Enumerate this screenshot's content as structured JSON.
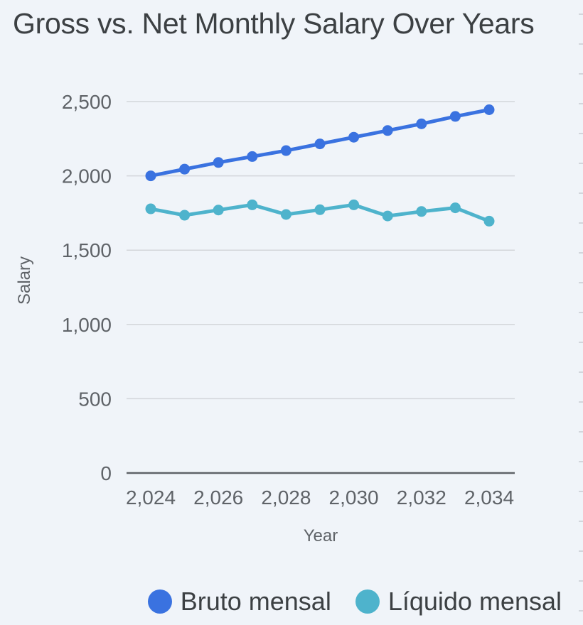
{
  "title": "Gross vs. Net Monthly Salary Over Years",
  "colors": {
    "background": "#f0f4f9",
    "gridline": "#d3d6da",
    "baseline": "#5f6368",
    "text": "#3c4043",
    "tick": "#5f6368"
  },
  "chart_data": {
    "type": "line",
    "title": "Gross vs. Net Monthly Salary Over Years",
    "xlabel": "Year",
    "ylabel": "Salary",
    "x": [
      2024,
      2025,
      2026,
      2027,
      2028,
      2029,
      2030,
      2031,
      2032,
      2033,
      2034
    ],
    "xlim": [
      2024,
      2034
    ],
    "ylim": [
      0,
      2500
    ],
    "x_ticks": [
      "2,024",
      "2,026",
      "2,028",
      "2,030",
      "2,032",
      "2,034"
    ],
    "x_tick_values": [
      2024,
      2026,
      2028,
      2030,
      2032,
      2034
    ],
    "y_ticks": [
      "0",
      "500",
      "1,000",
      "1,500",
      "2,000",
      "2,500"
    ],
    "y_tick_values": [
      0,
      500,
      1000,
      1500,
      2000,
      2500
    ],
    "grid": true,
    "legend_position": "bottom-right",
    "series": [
      {
        "name": "Bruto mensal",
        "color": "#3a72e0",
        "values": [
          2000,
          2045,
          2090,
          2130,
          2170,
          2215,
          2260,
          2305,
          2350,
          2400,
          2445
        ]
      },
      {
        "name": "Líquido mensal",
        "color": "#4eb3cc",
        "values": [
          1778,
          1735,
          1770,
          1805,
          1740,
          1772,
          1805,
          1730,
          1760,
          1785,
          1695
        ]
      }
    ]
  }
}
